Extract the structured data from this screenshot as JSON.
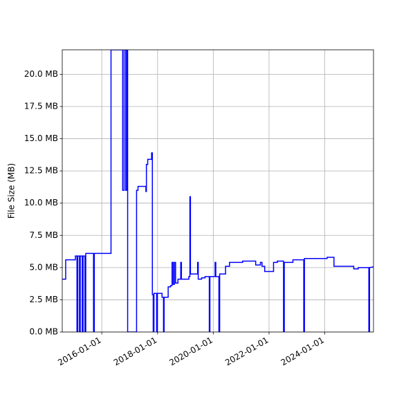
{
  "chart_data": {
    "type": "line",
    "title": "",
    "xlabel": "",
    "ylabel": "File Size (MB)",
    "grid": true,
    "legend": "none",
    "colors": {
      "line": "#0000ff",
      "grid": "#b0b0b0"
    },
    "x_ticks": [
      "2016-01-01",
      "2018-01-01",
      "2020-01-01",
      "2022-01-01",
      "2024-01-01"
    ],
    "y_ticks": [
      "0.0 MB",
      "2.5 MB",
      "5.0 MB",
      "7.5 MB",
      "10.0 MB",
      "12.5 MB",
      "15.0 MB",
      "17.5 MB",
      "20.0 MB"
    ],
    "xlim": [
      "2014-08-01",
      "2025-10-01"
    ],
    "ylim": [
      0,
      21.9
    ],
    "series": [
      {
        "values": [
          [
            "2014-08-01",
            4.1
          ],
          [
            "2014-09-15",
            4.1
          ],
          [
            "2014-09-15",
            5.6
          ],
          [
            "2015-01-20",
            5.6
          ],
          [
            "2015-01-20",
            5.9
          ],
          [
            "2015-02-10",
            5.9
          ],
          [
            "2015-02-10",
            0
          ],
          [
            "2015-02-20",
            0
          ],
          [
            "2015-02-20",
            5.9
          ],
          [
            "2015-03-15",
            5.9
          ],
          [
            "2015-03-15",
            0
          ],
          [
            "2015-03-25",
            0
          ],
          [
            "2015-03-25",
            5.9
          ],
          [
            "2015-04-20",
            5.9
          ],
          [
            "2015-04-20",
            0
          ],
          [
            "2015-05-01",
            0
          ],
          [
            "2015-05-01",
            5.9
          ],
          [
            "2015-05-25",
            5.9
          ],
          [
            "2015-05-25",
            0
          ],
          [
            "2015-06-05",
            0
          ],
          [
            "2015-06-05",
            6.1
          ],
          [
            "2015-09-15",
            6.1
          ],
          [
            "2015-09-15",
            0
          ],
          [
            "2015-09-25",
            0
          ],
          [
            "2015-09-25",
            6.1
          ],
          [
            "2016-05-01",
            6.1
          ],
          [
            "2016-05-01",
            21.9
          ],
          [
            "2016-10-01",
            21.9
          ],
          [
            "2016-10-01",
            11.0
          ],
          [
            "2016-10-20",
            11.0
          ],
          [
            "2016-10-20",
            21.9
          ],
          [
            "2016-11-10",
            21.9
          ],
          [
            "2016-11-10",
            11.0
          ],
          [
            "2016-11-25",
            11.0
          ],
          [
            "2016-11-25",
            21.9
          ],
          [
            "2016-12-05",
            21.9
          ],
          [
            "2016-12-05",
            0
          ],
          [
            "2017-04-01",
            0
          ],
          [
            "2017-04-01",
            11.0
          ],
          [
            "2017-04-20",
            11.0
          ],
          [
            "2017-04-20",
            11.3
          ],
          [
            "2017-08-01",
            11.3
          ],
          [
            "2017-08-01",
            10.9
          ],
          [
            "2017-08-08",
            10.9
          ],
          [
            "2017-08-08",
            13.0
          ],
          [
            "2017-08-25",
            13.0
          ],
          [
            "2017-08-25",
            13.4
          ],
          [
            "2017-10-15",
            13.4
          ],
          [
            "2017-10-15",
            13.9
          ],
          [
            "2017-10-25",
            13.9
          ],
          [
            "2017-10-25",
            2.9
          ],
          [
            "2017-11-05",
            2.9
          ],
          [
            "2017-11-05",
            0
          ],
          [
            "2017-11-15",
            0
          ],
          [
            "2017-11-15",
            3.0
          ],
          [
            "2017-12-20",
            3.0
          ],
          [
            "2017-12-20",
            0
          ],
          [
            "2017-12-30",
            0
          ],
          [
            "2017-12-30",
            3.0
          ],
          [
            "2018-03-01",
            3.0
          ],
          [
            "2018-03-01",
            2.7
          ],
          [
            "2018-03-20",
            2.7
          ],
          [
            "2018-03-20",
            0
          ],
          [
            "2018-03-28",
            0
          ],
          [
            "2018-03-28",
            2.7
          ],
          [
            "2018-05-20",
            2.7
          ],
          [
            "2018-05-20",
            3.5
          ],
          [
            "2018-06-20",
            3.5
          ],
          [
            "2018-06-20",
            3.6
          ],
          [
            "2018-07-10",
            3.6
          ],
          [
            "2018-07-10",
            5.4
          ],
          [
            "2018-07-25",
            5.4
          ],
          [
            "2018-07-25",
            3.7
          ],
          [
            "2018-08-10",
            3.7
          ],
          [
            "2018-08-10",
            5.4
          ],
          [
            "2018-08-25",
            5.4
          ],
          [
            "2018-08-25",
            3.8
          ],
          [
            "2018-09-25",
            3.8
          ],
          [
            "2018-09-25",
            4.1
          ],
          [
            "2018-11-01",
            4.1
          ],
          [
            "2018-11-01",
            5.4
          ],
          [
            "2018-11-10",
            5.4
          ],
          [
            "2018-11-10",
            4.1
          ],
          [
            "2019-02-15",
            4.1
          ],
          [
            "2019-02-15",
            4.3
          ],
          [
            "2019-03-01",
            4.3
          ],
          [
            "2019-03-01",
            10.5
          ],
          [
            "2019-03-08",
            10.5
          ],
          [
            "2019-03-08",
            4.5
          ],
          [
            "2019-06-10",
            4.5
          ],
          [
            "2019-06-10",
            5.4
          ],
          [
            "2019-06-18",
            5.4
          ],
          [
            "2019-06-18",
            4.1
          ],
          [
            "2019-08-01",
            4.1
          ],
          [
            "2019-08-01",
            4.2
          ],
          [
            "2019-09-15",
            4.2
          ],
          [
            "2019-09-15",
            4.3
          ],
          [
            "2019-11-10",
            4.3
          ],
          [
            "2019-11-10",
            0
          ],
          [
            "2019-11-18",
            0
          ],
          [
            "2019-11-18",
            4.3
          ],
          [
            "2020-01-25",
            4.3
          ],
          [
            "2020-01-25",
            5.4
          ],
          [
            "2020-02-03",
            5.4
          ],
          [
            "2020-02-03",
            4.3
          ],
          [
            "2020-03-15",
            4.3
          ],
          [
            "2020-03-15",
            0
          ],
          [
            "2020-03-25",
            0
          ],
          [
            "2020-03-25",
            4.5
          ],
          [
            "2020-06-10",
            4.5
          ],
          [
            "2020-06-10",
            5.1
          ],
          [
            "2020-08-01",
            5.1
          ],
          [
            "2020-08-01",
            5.4
          ],
          [
            "2021-01-20",
            5.4
          ],
          [
            "2021-01-20",
            5.5
          ],
          [
            "2021-07-10",
            5.5
          ],
          [
            "2021-07-10",
            5.2
          ],
          [
            "2021-09-10",
            5.2
          ],
          [
            "2021-09-10",
            5.4
          ],
          [
            "2021-10-01",
            5.4
          ],
          [
            "2021-10-01",
            5.1
          ],
          [
            "2021-11-05",
            5.1
          ],
          [
            "2021-11-05",
            4.7
          ],
          [
            "2022-03-01",
            4.7
          ],
          [
            "2022-03-01",
            5.4
          ],
          [
            "2022-04-20",
            5.4
          ],
          [
            "2022-04-20",
            5.5
          ],
          [
            "2022-07-10",
            5.5
          ],
          [
            "2022-07-10",
            0
          ],
          [
            "2022-07-20",
            0
          ],
          [
            "2022-07-20",
            5.4
          ],
          [
            "2022-11-10",
            5.4
          ],
          [
            "2022-11-10",
            5.6
          ],
          [
            "2023-04-01",
            5.6
          ],
          [
            "2023-04-01",
            0
          ],
          [
            "2023-04-10",
            0
          ],
          [
            "2023-04-10",
            5.7
          ],
          [
            "2024-02-01",
            5.7
          ],
          [
            "2024-02-01",
            5.8
          ],
          [
            "2024-05-01",
            5.8
          ],
          [
            "2024-05-01",
            5.1
          ],
          [
            "2024-07-01",
            5.1
          ],
          [
            "2024-07-01",
            5.1
          ],
          [
            "2025-01-15",
            5.1
          ],
          [
            "2025-01-15",
            4.9
          ],
          [
            "2025-03-15",
            4.9
          ],
          [
            "2025-03-15",
            5.0
          ],
          [
            "2025-08-01",
            5.0
          ],
          [
            "2025-08-01",
            0
          ],
          [
            "2025-08-10",
            0
          ],
          [
            "2025-08-10",
            5.0
          ],
          [
            "2025-10-01",
            5.05
          ]
        ]
      }
    ]
  }
}
